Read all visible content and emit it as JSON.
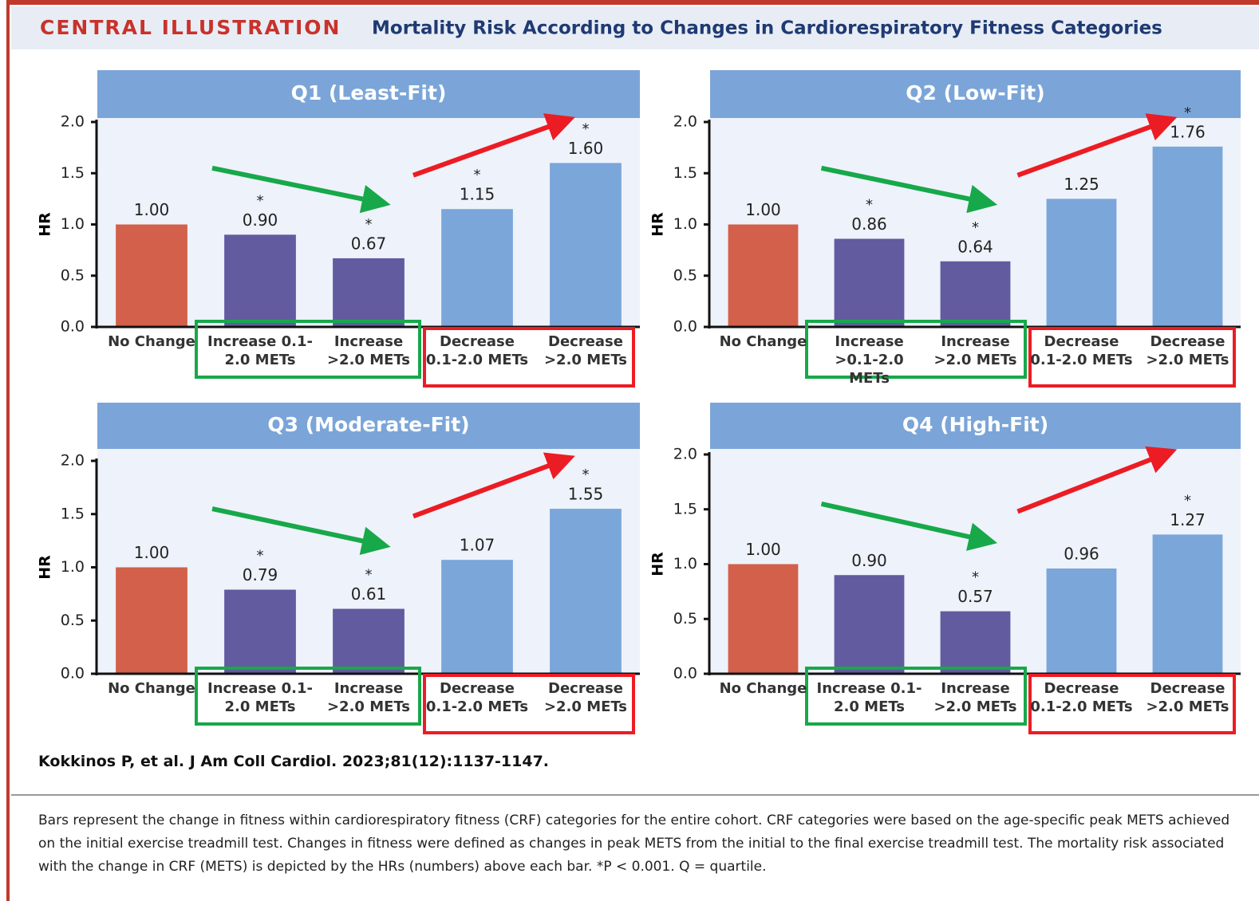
{
  "header": {
    "label": "CENTRAL ILLUSTRATION",
    "title": "Mortality Risk According to Changes in Cardiorespiratory Fitness Categories"
  },
  "chart_data": [
    {
      "type": "bar",
      "title": "Q1 (Least-Fit)",
      "y_label": "HR",
      "categories": [
        "No Change",
        "Increase 0.1-2.0 METs",
        "Increase >2.0 METs",
        "Decrease 0.1-2.0 METs",
        "Decrease >2.0 METs"
      ],
      "values": [
        1.0,
        0.9,
        0.67,
        1.15,
        1.6
      ],
      "value_labels": [
        "1.00",
        "0.90",
        "0.67",
        "1.15",
        "1.60"
      ],
      "significance": [
        null,
        "*",
        "*",
        "*",
        "*"
      ],
      "colors": [
        "#d2604a",
        "#625b9f",
        "#625b9f",
        "#7ba6da",
        "#7ba6da"
      ],
      "ylim": [
        0,
        2
      ],
      "yticks": [
        {
          "value": 0,
          "label": "0.0"
        },
        0.5,
        {
          "value": 1,
          "label": "1.0"
        },
        1.5,
        {
          "value": 2,
          "label": "2.0"
        }
      ]
    },
    {
      "type": "bar",
      "title": "Q2 (Low-Fit)",
      "y_label": "HR",
      "categories": [
        "No Change",
        "Increase >0.1-2.0 METs",
        "Increase >2.0 METs",
        "Decrease 0.1-2.0 METs",
        "Decrease >2.0 METs"
      ],
      "values": [
        1.0,
        0.86,
        0.64,
        1.25,
        1.76
      ],
      "value_labels": [
        "1.00",
        "0.86",
        "0.64",
        "1.25",
        "1.76"
      ],
      "significance": [
        null,
        "*",
        "*",
        null,
        "*"
      ],
      "colors": [
        "#d2604a",
        "#625b9f",
        "#625b9f",
        "#7ba6da",
        "#7ba6da"
      ],
      "ylim": [
        0,
        2
      ],
      "yticks": [
        {
          "value": 0,
          "label": "0.0"
        },
        0.5,
        {
          "value": 1,
          "label": "1.0"
        },
        1.5,
        {
          "value": 2,
          "label": "2.0"
        }
      ]
    },
    {
      "type": "bar",
      "title": "Q3 (Moderate-Fit)",
      "y_label": "HR",
      "categories": [
        "No Change",
        "Increase 0.1-2.0 METs",
        "Increase >2.0 METs",
        "Decrease 0.1-2.0 METs",
        "Decrease >2.0 METs"
      ],
      "values": [
        1.0,
        0.79,
        0.61,
        1.07,
        1.55
      ],
      "value_labels": [
        "1.00",
        "0.79",
        "0.61",
        "1.07",
        "1.55"
      ],
      "significance": [
        null,
        "*",
        "*",
        null,
        "*"
      ],
      "colors": [
        "#d2604a",
        "#625b9f",
        "#625b9f",
        "#7ba6da",
        "#7ba6da"
      ],
      "ylim": [
        0,
        2
      ],
      "yticks": [
        {
          "value": 0,
          "label": "0.0"
        },
        0.5,
        {
          "value": 1,
          "label": "1.0"
        },
        1.5,
        {
          "value": 2,
          "label": "2.0"
        }
      ]
    },
    {
      "type": "bar",
      "title": "Q4 (High-Fit)",
      "y_label": "HR",
      "categories": [
        "No Change",
        "Increase 0.1-2.0 METs",
        "Increase >2.0 METs",
        "Decrease 0.1-2.0 METs",
        "Decrease >2.0 METs"
      ],
      "values": [
        1.0,
        0.9,
        0.57,
        0.96,
        1.27
      ],
      "value_labels": [
        "1.00",
        "0.90",
        "0.57",
        "0.96",
        "1.27"
      ],
      "significance": [
        null,
        null,
        "*",
        null,
        "*"
      ],
      "colors": [
        "#d2604a",
        "#625b9f",
        "#625b9f",
        "#7ba6da",
        "#7ba6da"
      ],
      "ylim": [
        0,
        2
      ],
      "yticks": [
        {
          "value": 0,
          "label": "0.0"
        },
        0.5,
        {
          "value": 1,
          "label": "1.0"
        },
        1.5,
        {
          "value": 2,
          "label": "2.0"
        }
      ]
    }
  ],
  "citation": "Kokkinos P, et al. J Am Coll Cardiol. 2023;81(12):1137-1147.",
  "caption": "Bars represent the change in fitness within cardiorespiratory fitness (CRF) categories for the entire cohort. CRF categories were based on the age-specific peak METS achieved on the initial exercise treadmill test. Changes in fitness were defined as changes in peak METS from the initial to the final exercise treadmill test. The mortality risk associated with the change in CRF (METS) is depicted by the HRs (numbers) above each bar. *P < 0.001. Q = quartile."
}
